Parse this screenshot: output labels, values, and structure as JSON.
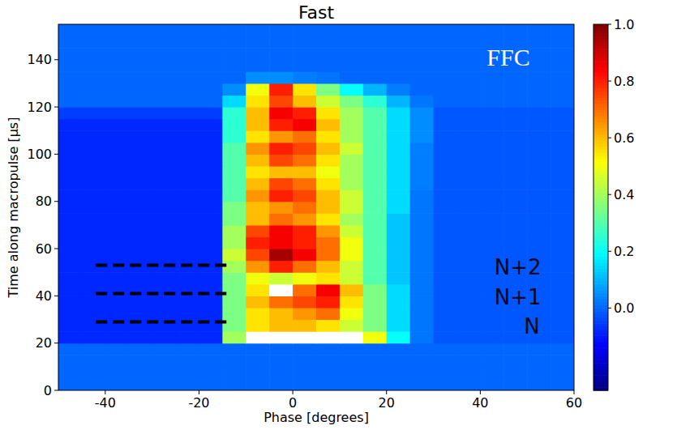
{
  "chart_data": {
    "type": "heatmap",
    "title": "Fast",
    "x_label": "Phase [degrees]",
    "y_label": "Time along macropulse [µs]",
    "xlim": [
      -50,
      60
    ],
    "ylim": [
      0,
      155
    ],
    "xticks": [
      -40,
      -20,
      0,
      20,
      40,
      60
    ],
    "yticks": [
      0,
      20,
      40,
      60,
      80,
      100,
      120,
      140
    ],
    "color": "jet",
    "x_edges": [
      -50,
      -45,
      -40,
      -35,
      -30,
      -25,
      -20,
      -15,
      -10,
      -5,
      0,
      5,
      10,
      15,
      20,
      25,
      30,
      35,
      40,
      45,
      50,
      55,
      60
    ],
    "y_edges": [
      0,
      5,
      10,
      15,
      20,
      25,
      30,
      35,
      40,
      45,
      50,
      55,
      60,
      65,
      70,
      75,
      80,
      85,
      90,
      95,
      100,
      105,
      110,
      115,
      120,
      125,
      130,
      135,
      140,
      145,
      150,
      155
    ],
    "cells": [
      [
        0,
        0,
        0,
        0,
        0,
        0,
        0,
        0,
        0,
        0,
        0,
        0,
        0,
        0,
        0,
        0,
        0,
        0,
        0,
        0,
        0,
        0
      ],
      [
        0,
        0,
        0,
        0,
        0,
        0,
        0,
        0,
        0,
        0,
        0,
        0,
        0,
        0,
        0,
        0,
        0,
        0,
        0,
        0,
        0,
        0
      ],
      [
        0,
        0,
        0,
        0,
        0,
        0,
        0,
        0,
        0,
        0,
        0,
        0,
        0,
        0,
        0,
        0,
        0,
        0,
        0,
        0,
        0,
        0
      ],
      [
        0,
        0,
        0,
        0,
        0,
        0,
        0,
        0,
        0,
        0,
        0,
        0,
        0,
        0,
        0,
        0,
        0,
        0,
        0,
        0,
        0,
        0
      ],
      [
        -0.08,
        -0.08,
        -0.08,
        -0.08,
        -0.08,
        -0.08,
        -0.08,
        0.4,
        null,
        null,
        null,
        null,
        null,
        0.5,
        0.2,
        0.02,
        -0.02,
        -0.02,
        -0.02,
        -0.02,
        -0.02,
        -0.02
      ],
      [
        -0.08,
        -0.08,
        -0.08,
        -0.08,
        -0.08,
        -0.08,
        -0.08,
        0.35,
        0.55,
        0.6,
        0.6,
        0.55,
        0.45,
        0.35,
        0.15,
        0.02,
        -0.02,
        -0.02,
        -0.02,
        -0.02,
        -0.02,
        -0.02
      ],
      [
        -0.08,
        -0.08,
        -0.08,
        -0.08,
        -0.08,
        -0.08,
        -0.08,
        0.35,
        0.55,
        0.6,
        0.65,
        0.7,
        0.5,
        0.35,
        0.15,
        0.02,
        -0.02,
        -0.02,
        -0.02,
        -0.02,
        -0.02,
        -0.02
      ],
      [
        -0.08,
        -0.08,
        -0.08,
        -0.08,
        -0.08,
        -0.08,
        -0.08,
        0.35,
        0.6,
        0.7,
        0.75,
        0.8,
        0.55,
        0.35,
        0.15,
        0.02,
        -0.02,
        -0.02,
        -0.02,
        -0.02,
        -0.02,
        -0.02
      ],
      [
        -0.08,
        -0.08,
        -0.08,
        -0.08,
        -0.08,
        -0.08,
        -0.08,
        0.35,
        0.55,
        null,
        0.7,
        0.85,
        0.6,
        0.35,
        0.15,
        0.02,
        -0.02,
        -0.02,
        -0.02,
        -0.02,
        -0.02,
        -0.02
      ],
      [
        -0.08,
        -0.08,
        -0.08,
        -0.08,
        -0.08,
        -0.08,
        -0.08,
        0.35,
        0.5,
        0.45,
        0.5,
        0.55,
        0.45,
        0.3,
        0.12,
        0.02,
        -0.02,
        -0.02,
        -0.02,
        -0.02,
        -0.02,
        -0.02
      ],
      [
        -0.08,
        -0.08,
        -0.08,
        -0.08,
        -0.08,
        -0.08,
        -0.08,
        0.4,
        0.65,
        0.8,
        0.7,
        0.6,
        0.45,
        0.3,
        0.12,
        0.02,
        -0.02,
        -0.02,
        -0.02,
        -0.02,
        -0.02,
        -0.02
      ],
      [
        -0.08,
        -0.08,
        -0.08,
        -0.08,
        -0.08,
        -0.08,
        -0.08,
        0.45,
        0.75,
        0.95,
        0.85,
        0.7,
        0.5,
        0.3,
        0.12,
        0.02,
        -0.02,
        -0.02,
        -0.02,
        -0.02,
        -0.02,
        -0.02
      ],
      [
        -0.08,
        -0.08,
        -0.08,
        -0.08,
        -0.08,
        -0.08,
        -0.08,
        0.4,
        0.8,
        0.85,
        0.8,
        0.7,
        0.5,
        0.3,
        0.12,
        0.02,
        -0.02,
        -0.02,
        -0.02,
        -0.02,
        -0.02,
        -0.02
      ],
      [
        -0.08,
        -0.08,
        -0.08,
        -0.08,
        -0.08,
        -0.08,
        -0.08,
        0.4,
        0.75,
        0.85,
        0.8,
        0.65,
        0.45,
        0.3,
        0.12,
        0.02,
        -0.02,
        -0.02,
        -0.02,
        -0.02,
        -0.02,
        -0.02
      ],
      [
        -0.08,
        -0.08,
        -0.08,
        -0.08,
        -0.08,
        -0.08,
        -0.08,
        0.35,
        0.6,
        0.7,
        0.65,
        0.55,
        0.4,
        0.3,
        0.12,
        0.02,
        -0.02,
        -0.02,
        -0.02,
        -0.02,
        -0.02,
        -0.02
      ],
      [
        -0.08,
        -0.08,
        -0.08,
        -0.08,
        -0.08,
        -0.08,
        -0.08,
        0.35,
        0.6,
        0.65,
        0.7,
        0.6,
        0.45,
        0.3,
        0.15,
        0.02,
        -0.02,
        -0.02,
        -0.02,
        -0.02,
        -0.02,
        -0.02
      ],
      [
        -0.08,
        -0.08,
        -0.08,
        -0.08,
        -0.08,
        -0.08,
        -0.08,
        0.3,
        0.65,
        0.8,
        0.75,
        0.6,
        0.45,
        0.3,
        0.15,
        0.02,
        -0.02,
        -0.02,
        -0.02,
        -0.02,
        -0.02,
        -0.02
      ],
      [
        -0.08,
        -0.08,
        -0.08,
        -0.08,
        -0.08,
        -0.08,
        -0.08,
        0.3,
        0.6,
        0.75,
        0.7,
        0.55,
        0.4,
        0.3,
        0.15,
        0.03,
        -0.02,
        -0.02,
        -0.02,
        -0.02,
        -0.02,
        -0.02
      ],
      [
        -0.08,
        -0.08,
        -0.08,
        -0.08,
        -0.08,
        -0.08,
        -0.08,
        0.3,
        0.55,
        0.6,
        0.6,
        0.5,
        0.4,
        0.3,
        0.15,
        0.03,
        -0.02,
        -0.02,
        -0.02,
        -0.02,
        -0.02,
        -0.02
      ],
      [
        -0.08,
        -0.08,
        -0.08,
        -0.08,
        -0.08,
        -0.08,
        -0.08,
        0.3,
        0.6,
        0.75,
        0.7,
        0.55,
        0.4,
        0.3,
        0.15,
        0.03,
        -0.02,
        -0.02,
        -0.02,
        -0.02,
        -0.02,
        -0.02
      ],
      [
        -0.08,
        -0.08,
        -0.08,
        -0.08,
        -0.08,
        -0.08,
        -0.08,
        0.3,
        0.65,
        0.8,
        0.75,
        0.6,
        0.45,
        0.3,
        0.15,
        0.03,
        -0.02,
        -0.02,
        -0.02,
        -0.02,
        -0.02,
        -0.02
      ],
      [
        -0.08,
        -0.08,
        -0.08,
        -0.08,
        -0.08,
        -0.08,
        -0.08,
        0.25,
        0.55,
        0.65,
        0.7,
        0.55,
        0.4,
        0.3,
        0.15,
        0.05,
        -0.02,
        -0.02,
        -0.02,
        -0.02,
        -0.02,
        -0.02
      ],
      [
        -0.08,
        -0.08,
        -0.08,
        -0.08,
        -0.08,
        -0.08,
        -0.08,
        0.25,
        0.6,
        0.8,
        0.85,
        0.6,
        0.4,
        0.3,
        0.15,
        0.05,
        -0.02,
        -0.02,
        -0.02,
        -0.02,
        -0.02,
        -0.02
      ],
      [
        -0.05,
        -0.05,
        -0.05,
        -0.05,
        -0.05,
        -0.05,
        -0.05,
        0.25,
        0.6,
        0.85,
        0.8,
        0.55,
        0.4,
        0.3,
        0.15,
        0.05,
        -0.02,
        -0.02,
        -0.02,
        -0.02,
        -0.02,
        -0.02
      ],
      [
        0,
        0,
        0,
        0,
        0,
        0,
        0,
        0.15,
        0.55,
        0.75,
        0.6,
        0.45,
        0.35,
        0.25,
        0.1,
        0.02,
        0,
        0,
        0,
        0,
        0,
        0
      ],
      [
        0,
        0,
        0,
        0,
        0,
        0,
        0,
        0.05,
        0.5,
        0.8,
        0.55,
        0.35,
        0.2,
        0.1,
        0.03,
        0,
        0,
        0,
        0,
        0,
        0,
        0
      ],
      [
        0,
        0,
        0,
        0,
        0,
        0,
        0,
        0,
        0.05,
        0.05,
        0.03,
        0.02,
        0,
        0,
        0,
        0,
        0,
        0,
        0,
        0,
        0,
        0
      ],
      [
        0,
        0,
        0,
        0,
        0,
        0,
        0,
        0,
        0,
        0,
        0,
        0,
        0,
        0,
        0,
        0,
        0,
        0,
        0,
        0,
        0,
        0
      ],
      [
        0,
        0,
        0,
        0,
        0,
        0,
        0,
        0,
        0,
        0,
        0,
        0,
        0,
        0,
        0,
        0,
        0,
        0,
        0,
        0,
        0,
        0
      ],
      [
        0,
        0,
        0,
        0,
        0,
        0,
        0,
        0,
        0,
        0,
        0,
        0,
        0,
        0,
        0,
        0,
        0,
        0,
        0,
        0,
        0,
        0
      ],
      [
        0,
        0,
        0,
        0,
        0,
        0,
        0,
        0,
        0,
        0,
        0,
        0,
        0,
        0,
        0,
        0,
        0,
        0,
        0,
        0,
        0,
        0
      ]
    ],
    "colorbar": {
      "range": [
        -0.29,
        1.0
      ],
      "ticks": [
        {
          "value": 0,
          "label": "0.0"
        },
        0.2,
        0.4,
        0.6,
        0.8,
        {
          "value": 1,
          "label": "1.0"
        }
      ]
    },
    "lines": [
      {
        "y": 29,
        "x": [
          -42,
          -14
        ],
        "line_style": "dashed",
        "color": "black"
      },
      {
        "y": 41,
        "x": [
          -42,
          -14
        ],
        "line_style": "dashed",
        "color": "black"
      },
      {
        "y": 53,
        "x": [
          -42,
          -14
        ],
        "line_style": "dashed",
        "color": "black"
      }
    ],
    "annotations": [
      {
        "text": "FFC",
        "x": 46,
        "y": 141,
        "color": "white"
      },
      {
        "text": "N+2",
        "x": 48,
        "y": 52,
        "color": "#000820"
      },
      {
        "text": "N+1",
        "x": 48,
        "y": 39.5,
        "color": "#000820"
      },
      {
        "text": "N",
        "x": 51,
        "y": 27,
        "color": "#000820"
      }
    ]
  }
}
